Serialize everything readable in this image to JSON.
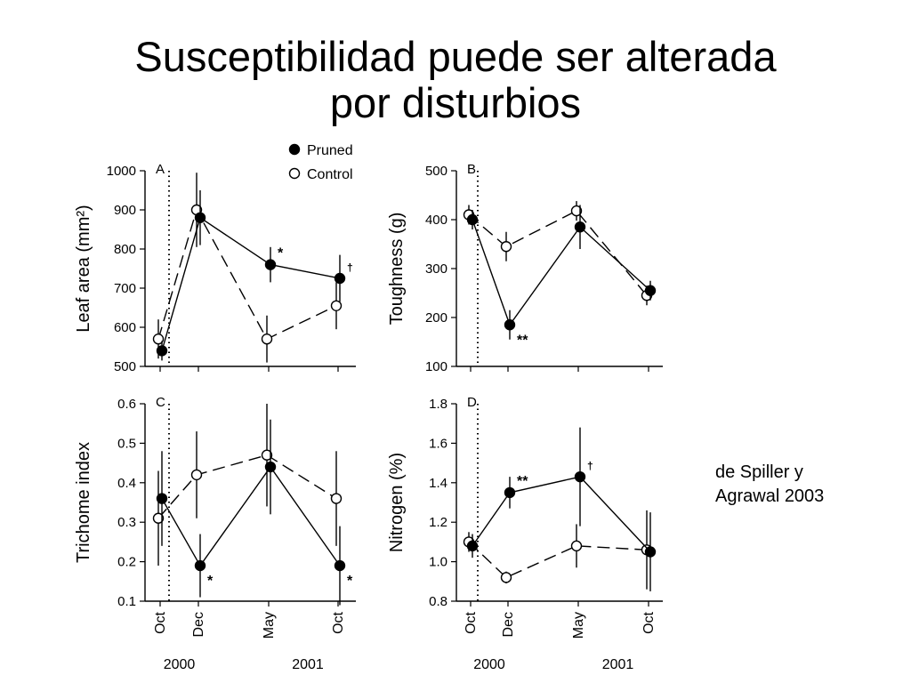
{
  "title": {
    "line1": "Susceptibilidad puede ser alterada",
    "line2": "por disturbios"
  },
  "citation": {
    "line1": "de Spiller y",
    "line2": "Agrawal 2003"
  },
  "legend": {
    "pruned": "Pruned",
    "control": "Control"
  },
  "colors": {
    "line": "#000000",
    "background": "#ffffff"
  },
  "chart_data": [
    {
      "type": "line",
      "panel": "A",
      "ylabel": "Leaf area (mm²)",
      "ylim": [
        500,
        1000
      ],
      "yticks": [
        "500",
        "600",
        "700",
        "800",
        "900",
        "1000"
      ],
      "x": [
        "Oct",
        "Dec",
        "May",
        "Oct"
      ],
      "year_labels": [
        "2000",
        "2001"
      ],
      "series": [
        {
          "name": "Pruned",
          "values": [
            540,
            880,
            760,
            725
          ],
          "error": [
            25,
            70,
            45,
            60
          ]
        },
        {
          "name": "Control",
          "values": [
            570,
            900,
            570,
            655
          ],
          "error": [
            50,
            95,
            60,
            60
          ]
        }
      ],
      "annotations": [
        "",
        "",
        "*",
        "†"
      ]
    },
    {
      "type": "line",
      "panel": "B",
      "ylabel": "Toughness (g)",
      "ylim": [
        100,
        500
      ],
      "yticks": [
        "100",
        "200",
        "300",
        "400",
        "500"
      ],
      "x": [
        "Oct",
        "Dec",
        "May",
        "Oct"
      ],
      "year_labels": [
        "2000",
        "2001"
      ],
      "series": [
        {
          "name": "Pruned",
          "values": [
            400,
            185,
            385,
            255
          ],
          "error": [
            20,
            30,
            45,
            20
          ]
        },
        {
          "name": "Control",
          "values": [
            410,
            345,
            418,
            245
          ],
          "error": [
            20,
            30,
            20,
            20
          ]
        }
      ],
      "annotations": [
        "",
        "**",
        "",
        ""
      ]
    },
    {
      "type": "line",
      "panel": "C",
      "ylabel": "Trichome index",
      "ylim": [
        0.1,
        0.6
      ],
      "yticks": [
        "0.1",
        "0.2",
        "0.3",
        "0.4",
        "0.5",
        "0.6"
      ],
      "x": [
        "Oct",
        "Dec",
        "May",
        "Oct"
      ],
      "year_labels": [
        "2000",
        "2001"
      ],
      "series": [
        {
          "name": "Pruned",
          "values": [
            0.36,
            0.19,
            0.44,
            0.19
          ],
          "error": [
            0.12,
            0.08,
            0.12,
            0.1
          ]
        },
        {
          "name": "Control",
          "values": [
            0.31,
            0.42,
            0.47,
            0.36
          ],
          "error": [
            0.12,
            0.11,
            0.13,
            0.12
          ]
        }
      ],
      "annotations": [
        "",
        "*",
        "",
        "*"
      ]
    },
    {
      "type": "line",
      "panel": "D",
      "ylabel": "Nitrogen (%)",
      "ylim": [
        0.8,
        1.8
      ],
      "yticks": [
        "0.8",
        "1.0",
        "1.2",
        "1.4",
        "1.6",
        "1.8"
      ],
      "x": [
        "Oct",
        "Dec",
        "May",
        "Oct"
      ],
      "year_labels": [
        "2000",
        "2001"
      ],
      "series": [
        {
          "name": "Pruned",
          "values": [
            1.08,
            1.35,
            1.43,
            1.05
          ],
          "error": [
            0.06,
            0.08,
            0.25,
            0.2
          ]
        },
        {
          "name": "Control",
          "values": [
            1.1,
            0.92,
            1.08,
            1.06
          ],
          "error": [
            0.05,
            0.03,
            0.11,
            0.2
          ]
        }
      ],
      "annotations": [
        "",
        "**",
        "†",
        ""
      ]
    }
  ]
}
